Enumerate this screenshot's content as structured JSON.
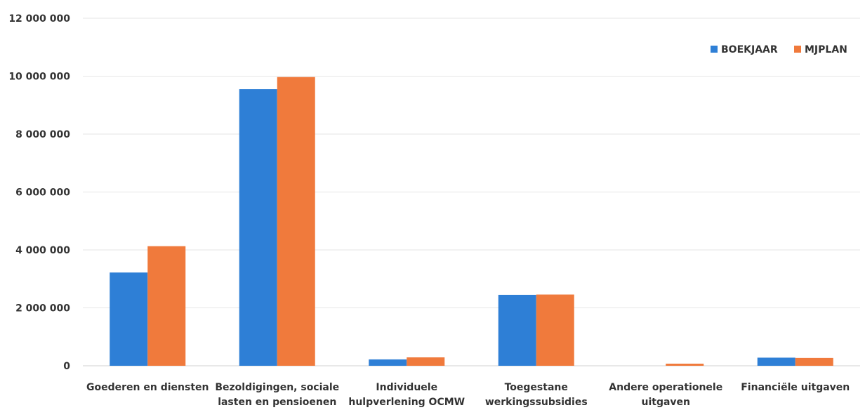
{
  "chart_data": {
    "type": "bar",
    "categories": [
      [
        "Goederen en diensten"
      ],
      [
        "Bezoldigingen, sociale",
        "lasten en pensioenen"
      ],
      [
        "Individuele",
        "hulpverlening OCMW"
      ],
      [
        "Toegestane",
        "werkingssubsidies"
      ],
      [
        "Andere operationele",
        "uitgaven"
      ],
      [
        "Financiële uitgaven"
      ]
    ],
    "series": [
      {
        "name": "BOEKJAAR",
        "color": "#2e7fd6",
        "values": [
          3220000,
          9550000,
          220000,
          2450000,
          0,
          280000
        ]
      },
      {
        "name": "MJPLAN",
        "color": "#f07a3c",
        "values": [
          4130000,
          9970000,
          290000,
          2460000,
          40000,
          270000
        ]
      }
    ],
    "ylim": [
      0,
      12000000
    ],
    "yticks": [
      0,
      2000000,
      4000000,
      6000000,
      8000000,
      10000000,
      12000000
    ],
    "ytick_labels": [
      "0",
      "2 000 000",
      "4 000 000",
      "6 000 000",
      "8 000 000",
      "10 000 000",
      "12 000 000"
    ],
    "grid": true,
    "legend_position": "top-right"
  }
}
